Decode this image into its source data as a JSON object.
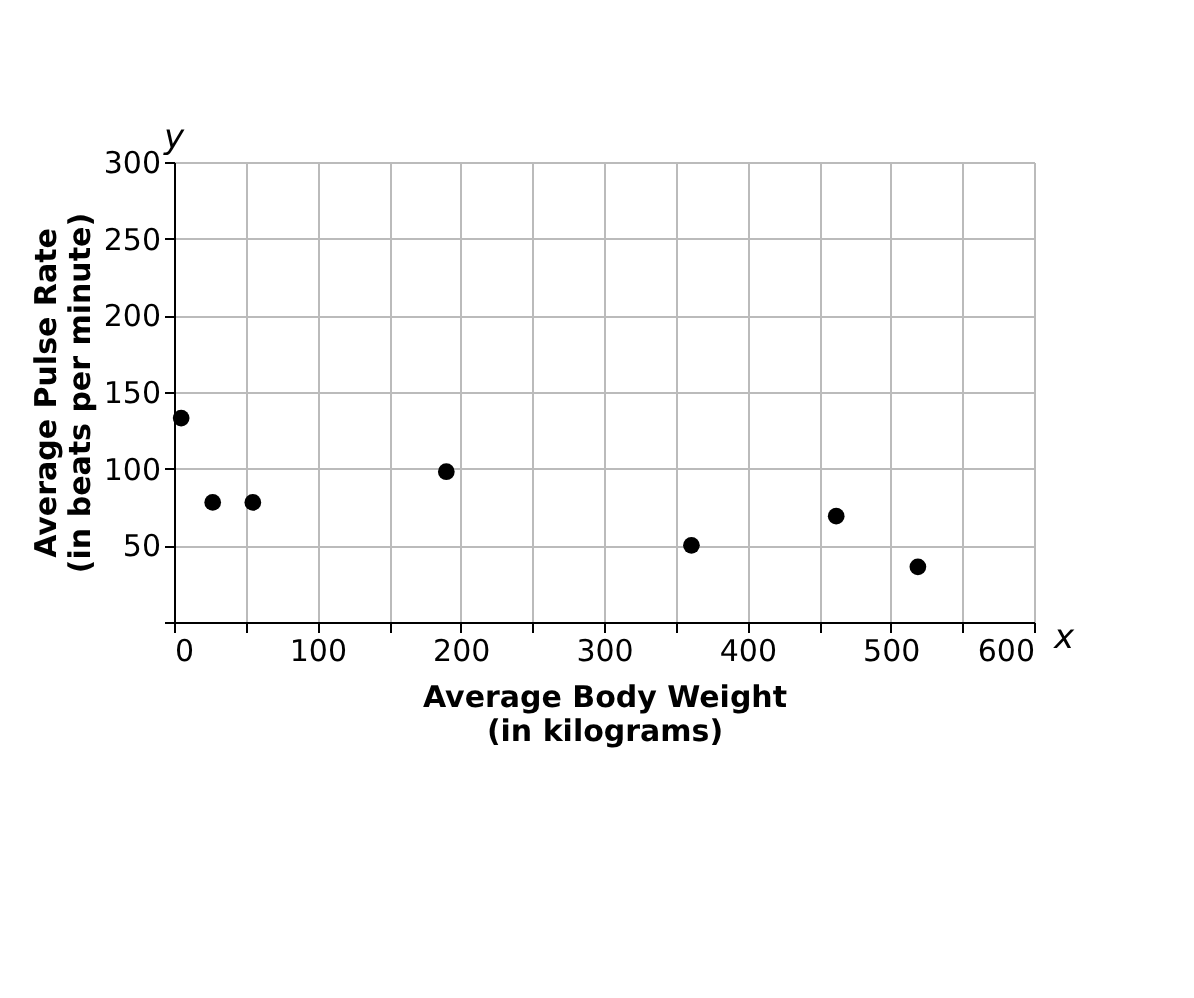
{
  "chart_data": {
    "type": "scatter",
    "x": [
      5,
      27,
      55,
      190,
      361,
      462,
      519
    ],
    "values": [
      133,
      78,
      78,
      98,
      50,
      69,
      36
    ],
    "color": "#000000",
    "marker": "circle",
    "xlabel": "Average Body Weight\n(in kilograms)",
    "ylabel": "Average Pulse Rate\n(in beats per minute)",
    "annotations": [
      "x",
      "y"
    ],
    "xlim": [
      0,
      600
    ],
    "ylim": [
      0,
      300
    ],
    "xticks": [
      0,
      {
        "value": 50,
        "label": null
      },
      100,
      {
        "value": 150,
        "label": null
      },
      200,
      {
        "value": 250,
        "label": null
      },
      300,
      {
        "value": 350,
        "label": null
      },
      400,
      {
        "value": 450,
        "label": null
      },
      500,
      {
        "value": 550,
        "label": null
      },
      600
    ],
    "yticks": [
      {
        "value": 0,
        "label": null
      },
      50,
      100,
      150,
      200,
      250,
      300
    ],
    "grid": true
  }
}
